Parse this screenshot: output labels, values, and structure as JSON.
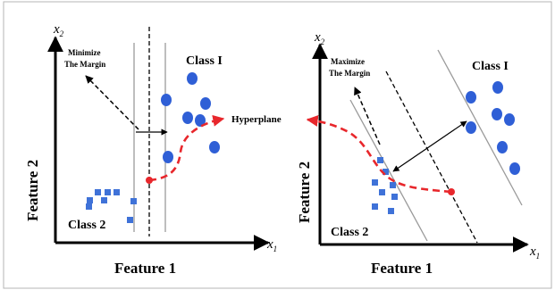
{
  "figure": {
    "hyperplane_label": "Hyperplane",
    "left_panel": {
      "x_feature": "Feature 1",
      "y_feature": "Feature 2",
      "x_var": "x",
      "x_sub": "1",
      "y_var": "x",
      "y_sub": "2",
      "annotation_line1": "Minimize",
      "annotation_line2": "The Margin",
      "class1_label": "Class I",
      "class2_label": "Class 2"
    },
    "right_panel": {
      "x_feature": "Feature 1",
      "y_feature": "Feature 2",
      "x_var": "x",
      "x_sub": "1",
      "y_var": "x",
      "y_sub": "2",
      "annotation_line1": "Maximize",
      "annotation_line2": "The Margin",
      "class1_label": "Class I",
      "class2_label": "Class 2"
    },
    "colors": {
      "circle": "#2f5fd6",
      "square": "#3f72d8",
      "curve": "#e8272c",
      "axis": "#000000",
      "margin_line": "#9a9a9a",
      "border": "#b5b5b5"
    }
  }
}
